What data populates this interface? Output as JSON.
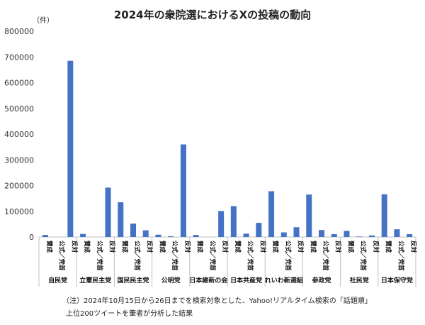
{
  "chart_data": {
    "type": "bar",
    "title": "2024年の衆院選におけるXの投稿の動向",
    "unit": "（件）",
    "ylim": [
      0,
      800000
    ],
    "yticks": [
      "800000",
      "700000",
      "600000",
      "500000",
      "400000",
      "300000",
      "200000",
      "100000",
      "0"
    ],
    "grid": false,
    "color": "#4472C4",
    "sub_categories": [
      "賛成",
      "公式／党首",
      "反対"
    ],
    "groups": [
      {
        "name": "自民党",
        "values": [
          8000,
          0,
          685000
        ]
      },
      {
        "name": "立憲民主党",
        "values": [
          12000,
          0,
          192000
        ]
      },
      {
        "name": "国民民主党",
        "values": [
          135000,
          52000,
          26000
        ]
      },
      {
        "name": "公明党",
        "values": [
          9000,
          3000,
          360000
        ]
      },
      {
        "name": "日本維新の会",
        "values": [
          8000,
          0,
          101000
        ]
      },
      {
        "name": "日本共産党",
        "values": [
          120000,
          13000,
          55000
        ]
      },
      {
        "name": "れいわ新選組",
        "values": [
          178000,
          18000,
          38000
        ]
      },
      {
        "name": "参政党",
        "values": [
          165000,
          27000,
          11000
        ]
      },
      {
        "name": "社民党",
        "values": [
          24000,
          2000,
          6000
        ]
      },
      {
        "name": "日本保守党",
        "values": [
          166000,
          30000,
          11000
        ]
      }
    ]
  },
  "notes": {
    "line1": "（注）2024年10月15日から26日までを検索対象とした、Yahoo!リアルタイム検索の「話題順」",
    "line2": "上位200ツイートを筆者が分析した結果"
  }
}
